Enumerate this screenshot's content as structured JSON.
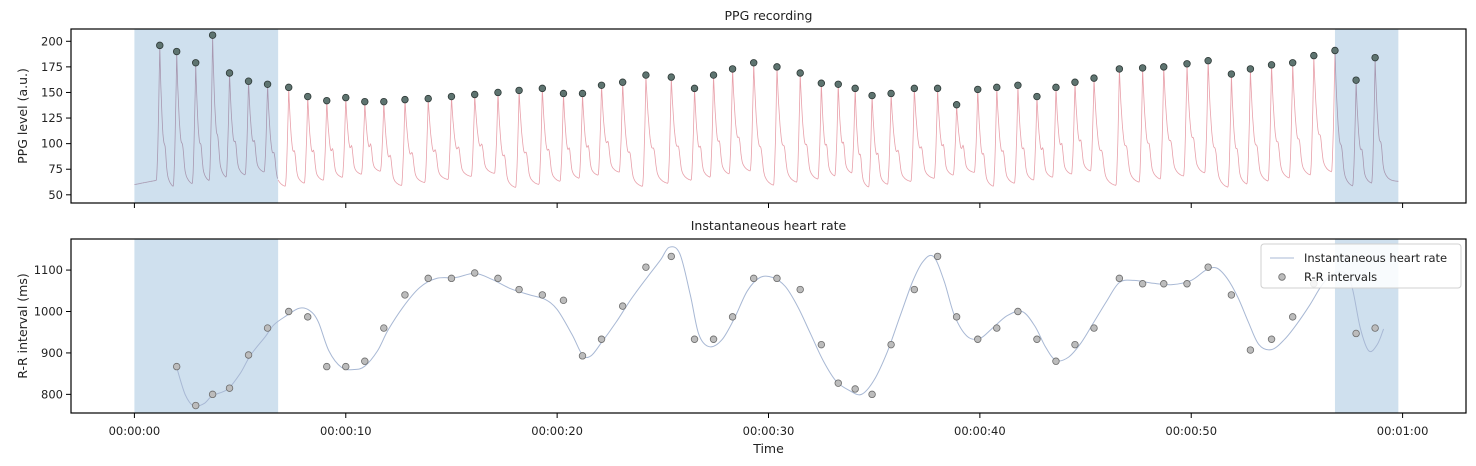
{
  "chart_data": [
    {
      "type": "line",
      "title": "PPG recording",
      "ylabel": "PPG level (a.u.)",
      "xlabel": "",
      "xlim": [
        -3,
        63
      ],
      "ylim": [
        42,
        212
      ],
      "yticks": [
        50,
        75,
        100,
        125,
        150,
        175,
        200
      ],
      "xticks": [
        0,
        10,
        20,
        30,
        40,
        50,
        60
      ],
      "x_tick_labels_visible": false,
      "grid": false,
      "shaded_regions": [
        {
          "x_start": 0,
          "x_end": 6.8,
          "color": "#cfe0ee"
        },
        {
          "x_start": 56.8,
          "x_end": 59.8,
          "color": "#cfe0ee"
        }
      ],
      "line_color": "#e8a0aa",
      "line_color_in_shaded": "#a898b0",
      "peak_marker_color": "#5e7470",
      "peaks": {
        "x": [
          1.2,
          2.0,
          2.9,
          3.7,
          4.5,
          5.4,
          6.3,
          7.3,
          8.2,
          9.1,
          10.0,
          10.9,
          11.8,
          12.8,
          13.9,
          15.0,
          16.1,
          17.2,
          18.2,
          19.3,
          20.3,
          21.2,
          22.1,
          23.1,
          24.2,
          25.4,
          26.5,
          27.4,
          28.3,
          29.3,
          30.4,
          31.5,
          32.5,
          33.3,
          34.1,
          34.9,
          35.8,
          36.9,
          38.0,
          38.9,
          39.9,
          40.8,
          41.8,
          42.7,
          43.6,
          44.5,
          45.4,
          46.6,
          47.7,
          48.7,
          49.8,
          50.8,
          51.9,
          52.8,
          53.8,
          54.8,
          55.8,
          56.8,
          57.8,
          58.7
        ],
        "y": [
          196,
          190,
          179,
          206,
          169,
          161,
          158,
          155,
          146,
          142,
          145,
          141,
          141,
          143,
          144,
          146,
          148,
          150,
          152,
          154,
          149,
          149,
          157,
          160,
          167,
          165,
          154,
          167,
          173,
          179,
          175,
          169,
          159,
          158,
          154,
          147,
          149,
          154,
          154,
          138,
          153,
          155,
          157,
          146,
          155,
          160,
          164,
          173,
          174,
          175,
          178,
          181,
          168,
          173,
          177,
          179,
          186,
          191,
          162,
          184
        ]
      }
    },
    {
      "type": "line",
      "title": "Instantaneous heart rate",
      "xlabel": "Time",
      "ylabel": "R-R interval (ms)",
      "xlim": [
        -3,
        63
      ],
      "ylim": [
        755,
        1175
      ],
      "yticks": [
        800,
        900,
        1000,
        1100
      ],
      "xticks": [
        0,
        10,
        20,
        30,
        40,
        50,
        60
      ],
      "xtick_labels": [
        "00:00:00",
        "00:00:10",
        "00:00:20",
        "00:00:30",
        "00:00:40",
        "00:00:50",
        "00:01:00"
      ],
      "grid": false,
      "legend": "top-right",
      "shaded_regions": [
        {
          "x_start": 0,
          "x_end": 6.8,
          "color": "#cfe0ee"
        },
        {
          "x_start": 56.8,
          "x_end": 59.8,
          "color": "#cfe0ee"
        }
      ],
      "series": [
        {
          "name": "Instantaneous heart rate",
          "kind": "line",
          "color": "#a8b8d4",
          "x": [
            2.0,
            2.4,
            2.8,
            3.3,
            3.7,
            4.4,
            5.0,
            5.5,
            6.2,
            6.6,
            7.2,
            7.8,
            8.3,
            8.7,
            9.2,
            9.8,
            10.4,
            10.9,
            11.5,
            12.0,
            12.7,
            13.5,
            14.3,
            15.2,
            16.1,
            16.9,
            17.8,
            18.7,
            19.4,
            20.0,
            20.7,
            21.2,
            21.6,
            22.1,
            22.8,
            23.5,
            24.3,
            24.9,
            25.3,
            25.8,
            26.3,
            26.7,
            27.2,
            27.8,
            28.4,
            29.0,
            29.6,
            30.2,
            30.8,
            31.4,
            32.0,
            32.6,
            33.2,
            33.8,
            34.4,
            35.0,
            35.6,
            36.2,
            36.8,
            37.3,
            37.8,
            38.3,
            38.8,
            39.4,
            40.0,
            40.6,
            41.3,
            42.0,
            42.6,
            43.1,
            43.6,
            44.2,
            44.8,
            45.4,
            46.0,
            46.6,
            47.3,
            48.2,
            49.1,
            50.0,
            50.7,
            51.2,
            51.7,
            52.2,
            52.7,
            53.2,
            53.8,
            54.4,
            55.0,
            55.6,
            56.2,
            56.7,
            57.2,
            57.6,
            58.0,
            58.4,
            58.8,
            59.1
          ],
          "y": [
            865,
            800,
            772,
            778,
            797,
            812,
            850,
            895,
            940,
            968,
            990,
            1008,
            1002,
            975,
            905,
            865,
            860,
            868,
            905,
            955,
            1010,
            1058,
            1080,
            1082,
            1092,
            1078,
            1055,
            1040,
            1030,
            1005,
            945,
            895,
            893,
            925,
            975,
            1030,
            1085,
            1125,
            1155,
            1140,
            1040,
            945,
            915,
            932,
            985,
            1050,
            1082,
            1082,
            1060,
            1010,
            945,
            880,
            832,
            810,
            800,
            835,
            900,
            985,
            1070,
            1120,
            1133,
            1075,
            990,
            940,
            935,
            960,
            990,
            1000,
            965,
            915,
            882,
            890,
            925,
            975,
            1025,
            1070,
            1075,
            1068,
            1065,
            1075,
            1100,
            1105,
            1080,
            1035,
            975,
            920,
            908,
            932,
            970,
            1015,
            1065,
            1090,
            1095,
            1060,
            960,
            905,
            920,
            958
          ]
        },
        {
          "name": "R-R intervals",
          "kind": "scatter",
          "color": "#bcbcbc",
          "edge": "#6e6e6e",
          "x": [
            2.0,
            2.9,
            3.7,
            4.5,
            5.4,
            6.3,
            7.3,
            8.2,
            9.1,
            10.0,
            10.9,
            11.8,
            12.8,
            13.9,
            15.0,
            16.1,
            17.2,
            18.2,
            19.3,
            20.3,
            21.2,
            22.1,
            23.1,
            24.2,
            25.4,
            26.5,
            27.4,
            28.3,
            29.3,
            30.4,
            31.5,
            32.5,
            33.3,
            34.1,
            34.9,
            35.8,
            36.9,
            38.0,
            38.9,
            39.9,
            40.8,
            41.8,
            42.7,
            43.6,
            44.5,
            45.4,
            46.6,
            47.7,
            48.7,
            49.8,
            50.8,
            51.9,
            52.8,
            53.8,
            54.8,
            55.8,
            57.8,
            58.7
          ],
          "y": [
            867,
            773,
            800,
            815,
            895,
            960,
            1000,
            987,
            867,
            867,
            880,
            960,
            1040,
            1080,
            1080,
            1093,
            1080,
            1053,
            1040,
            1027,
            893,
            933,
            1013,
            1107,
            1133,
            933,
            933,
            987,
            1080,
            1080,
            1053,
            920,
            827,
            813,
            800,
            920,
            1053,
            1133,
            987,
            933,
            960,
            1000,
            933,
            880,
            920,
            960,
            1080,
            1067,
            1067,
            1067,
            1107,
            1040,
            907,
            933,
            987,
            1067,
            947,
            960
          ]
        }
      ]
    }
  ]
}
